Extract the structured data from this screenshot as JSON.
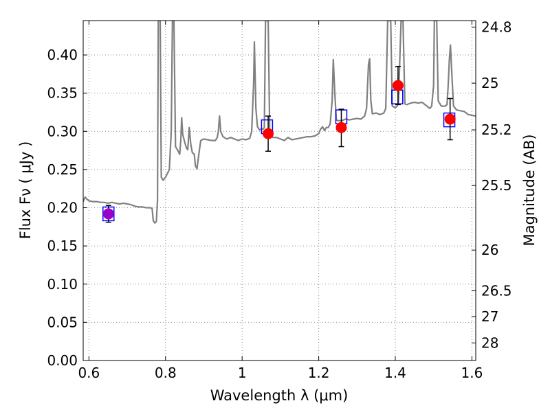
{
  "chart_data": {
    "type": "line",
    "xlabel": "Wavelength  λ (μm)",
    "ylabel": "Flux  Fν  ( μJy )",
    "y2label": "Magnitude (AB)",
    "xlim": [
      0.585,
      1.61
    ],
    "ylim": [
      0.0,
      0.445
    ],
    "grid": true,
    "xticks": [
      {
        "value": 0.6,
        "label": "0.6"
      },
      {
        "value": 0.8,
        "label": "0.8"
      },
      {
        "value": 1.0,
        "label": "1"
      },
      {
        "value": 1.2,
        "label": "1.2"
      },
      {
        "value": 1.4,
        "label": "1.4"
      },
      {
        "value": 1.6,
        "label": "1.6"
      }
    ],
    "yticks": [
      {
        "value": 0.0,
        "label": "0.00"
      },
      {
        "value": 0.05,
        "label": "0.05"
      },
      {
        "value": 0.1,
        "label": "0.10"
      },
      {
        "value": 0.15,
        "label": "0.15"
      },
      {
        "value": 0.2,
        "label": "0.20"
      },
      {
        "value": 0.25,
        "label": "0.25"
      },
      {
        "value": 0.3,
        "label": "0.30"
      },
      {
        "value": 0.35,
        "label": "0.35"
      },
      {
        "value": 0.4,
        "label": "0.40"
      }
    ],
    "y2ticks": [
      {
        "value": 24.8,
        "label": "24.8"
      },
      {
        "value": 25.0,
        "label": "25"
      },
      {
        "value": 25.2,
        "label": "25.2"
      },
      {
        "value": 25.5,
        "label": "25.5"
      },
      {
        "value": 26.0,
        "label": "26"
      },
      {
        "value": 26.5,
        "label": "26.5"
      },
      {
        "value": 27.0,
        "label": "27"
      },
      {
        "value": 28.0,
        "label": "28"
      }
    ],
    "colors": {
      "model": "#808080",
      "observed": "#ff0000",
      "observed_purple": "#9900cc",
      "synthetic": "#0000ff",
      "errorbar": "#000000",
      "grid": "#888888"
    },
    "model_spectrum": [
      [
        0.585,
        0.208
      ],
      [
        0.59,
        0.214
      ],
      [
        0.595,
        0.211
      ],
      [
        0.6,
        0.209
      ],
      [
        0.61,
        0.208
      ],
      [
        0.62,
        0.208
      ],
      [
        0.63,
        0.207
      ],
      [
        0.64,
        0.207
      ],
      [
        0.65,
        0.206
      ],
      [
        0.66,
        0.207
      ],
      [
        0.67,
        0.206
      ],
      [
        0.68,
        0.205
      ],
      [
        0.69,
        0.206
      ],
      [
        0.7,
        0.205
      ],
      [
        0.71,
        0.204
      ],
      [
        0.72,
        0.202
      ],
      [
        0.73,
        0.201
      ],
      [
        0.74,
        0.201
      ],
      [
        0.75,
        0.2
      ],
      [
        0.76,
        0.2
      ],
      [
        0.765,
        0.199
      ],
      [
        0.768,
        0.183
      ],
      [
        0.772,
        0.18
      ],
      [
        0.776,
        0.182
      ],
      [
        0.779,
        0.21
      ],
      [
        0.781,
        0.445
      ],
      [
        0.786,
        0.445
      ],
      [
        0.789,
        0.24
      ],
      [
        0.794,
        0.236
      ],
      [
        0.8,
        0.24
      ],
      [
        0.805,
        0.245
      ],
      [
        0.81,
        0.25
      ],
      [
        0.815,
        0.3
      ],
      [
        0.818,
        0.445
      ],
      [
        0.822,
        0.445
      ],
      [
        0.826,
        0.28
      ],
      [
        0.832,
        0.275
      ],
      [
        0.837,
        0.27
      ],
      [
        0.84,
        0.29
      ],
      [
        0.842,
        0.318
      ],
      [
        0.845,
        0.296
      ],
      [
        0.85,
        0.286
      ],
      [
        0.855,
        0.278
      ],
      [
        0.858,
        0.276
      ],
      [
        0.862,
        0.305
      ],
      [
        0.866,
        0.283
      ],
      [
        0.87,
        0.272
      ],
      [
        0.875,
        0.27
      ],
      [
        0.878,
        0.255
      ],
      [
        0.882,
        0.251
      ],
      [
        0.887,
        0.27
      ],
      [
        0.892,
        0.288
      ],
      [
        0.9,
        0.29
      ],
      [
        0.91,
        0.289
      ],
      [
        0.92,
        0.288
      ],
      [
        0.93,
        0.288
      ],
      [
        0.935,
        0.292
      ],
      [
        0.938,
        0.3
      ],
      [
        0.941,
        0.32
      ],
      [
        0.944,
        0.3
      ],
      [
        0.95,
        0.293
      ],
      [
        0.96,
        0.29
      ],
      [
        0.97,
        0.292
      ],
      [
        0.98,
        0.29
      ],
      [
        0.99,
        0.288
      ],
      [
        1.0,
        0.29
      ],
      [
        1.01,
        0.289
      ],
      [
        1.02,
        0.291
      ],
      [
        1.025,
        0.3
      ],
      [
        1.03,
        0.362
      ],
      [
        1.032,
        0.417
      ],
      [
        1.036,
        0.33
      ],
      [
        1.04,
        0.306
      ],
      [
        1.045,
        0.302
      ],
      [
        1.05,
        0.303
      ],
      [
        1.055,
        0.303
      ],
      [
        1.058,
        0.305
      ],
      [
        1.061,
        0.445
      ],
      [
        1.068,
        0.445
      ],
      [
        1.072,
        0.3
      ],
      [
        1.08,
        0.292
      ],
      [
        1.09,
        0.292
      ],
      [
        1.1,
        0.29
      ],
      [
        1.11,
        0.288
      ],
      [
        1.12,
        0.292
      ],
      [
        1.13,
        0.289
      ],
      [
        1.14,
        0.29
      ],
      [
        1.15,
        0.291
      ],
      [
        1.16,
        0.292
      ],
      [
        1.17,
        0.293
      ],
      [
        1.18,
        0.293
      ],
      [
        1.19,
        0.294
      ],
      [
        1.2,
        0.297
      ],
      [
        1.205,
        0.303
      ],
      [
        1.21,
        0.306
      ],
      [
        1.215,
        0.301
      ],
      [
        1.22,
        0.305
      ],
      [
        1.225,
        0.305
      ],
      [
        1.23,
        0.31
      ],
      [
        1.235,
        0.34
      ],
      [
        1.238,
        0.394
      ],
      [
        1.242,
        0.35
      ],
      [
        1.246,
        0.315
      ],
      [
        1.25,
        0.314
      ],
      [
        1.26,
        0.314
      ],
      [
        1.27,
        0.316
      ],
      [
        1.28,
        0.315
      ],
      [
        1.29,
        0.316
      ],
      [
        1.3,
        0.317
      ],
      [
        1.31,
        0.316
      ],
      [
        1.32,
        0.32
      ],
      [
        1.325,
        0.33
      ],
      [
        1.33,
        0.388
      ],
      [
        1.333,
        0.395
      ],
      [
        1.336,
        0.34
      ],
      [
        1.34,
        0.323
      ],
      [
        1.35,
        0.324
      ],
      [
        1.36,
        0.322
      ],
      [
        1.37,
        0.324
      ],
      [
        1.375,
        0.33
      ],
      [
        1.38,
        0.445
      ],
      [
        1.388,
        0.445
      ],
      [
        1.392,
        0.333
      ],
      [
        1.4,
        0.331
      ],
      [
        1.405,
        0.333
      ],
      [
        1.408,
        0.338
      ],
      [
        1.415,
        0.445
      ],
      [
        1.42,
        0.445
      ],
      [
        1.425,
        0.336
      ],
      [
        1.43,
        0.335
      ],
      [
        1.44,
        0.337
      ],
      [
        1.45,
        0.338
      ],
      [
        1.46,
        0.337
      ],
      [
        1.47,
        0.338
      ],
      [
        1.48,
        0.334
      ],
      [
        1.49,
        0.33
      ],
      [
        1.495,
        0.333
      ],
      [
        1.5,
        0.36
      ],
      [
        1.502,
        0.445
      ],
      [
        1.508,
        0.445
      ],
      [
        1.512,
        0.34
      ],
      [
        1.52,
        0.333
      ],
      [
        1.53,
        0.333
      ],
      [
        1.535,
        0.335
      ],
      [
        1.538,
        0.36
      ],
      [
        1.541,
        0.394
      ],
      [
        1.544,
        0.413
      ],
      [
        1.548,
        0.37
      ],
      [
        1.552,
        0.333
      ],
      [
        1.56,
        0.328
      ],
      [
        1.57,
        0.327
      ],
      [
        1.58,
        0.326
      ],
      [
        1.59,
        0.322
      ],
      [
        1.6,
        0.321
      ],
      [
        1.61,
        0.32
      ]
    ],
    "synthetic_photometry": [
      {
        "x": 0.651,
        "y": 0.192
      },
      {
        "x": 1.065,
        "y": 0.306
      },
      {
        "x": 1.259,
        "y": 0.319
      },
      {
        "x": 1.405,
        "y": 0.345
      },
      {
        "x": 1.541,
        "y": 0.315
      }
    ],
    "observed_photometry": [
      {
        "x": 0.651,
        "y": 0.192,
        "err_low": 0.011,
        "err_high": 0.011,
        "color": "purple"
      },
      {
        "x": 1.068,
        "y": 0.297,
        "err_low": 0.023,
        "err_high": 0.023,
        "color": "red"
      },
      {
        "x": 1.259,
        "y": 0.305,
        "err_low": 0.025,
        "err_high": 0.024,
        "color": "red"
      },
      {
        "x": 1.407,
        "y": 0.36,
        "err_low": 0.025,
        "err_high": 0.025,
        "color": "red"
      },
      {
        "x": 1.543,
        "y": 0.316,
        "err_low": 0.027,
        "err_high": 0.027,
        "color": "red"
      }
    ]
  }
}
